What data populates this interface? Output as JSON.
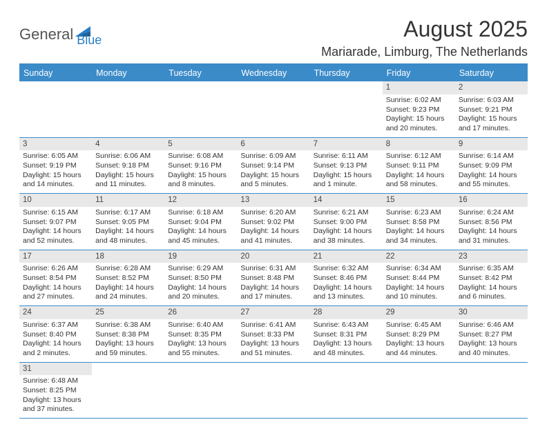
{
  "logo": {
    "part1": "General",
    "part2": "Blue"
  },
  "header": {
    "title": "August 2025",
    "location": "Mariarade, Limburg, The Netherlands"
  },
  "colors": {
    "header_bg": "#3b8bc9",
    "header_text": "#ffffff",
    "daynum_bg": "#e8e8e8",
    "rule": "#3b8bc9",
    "logo_blue": "#2a7ec6"
  },
  "weekdays": [
    "Sunday",
    "Monday",
    "Tuesday",
    "Wednesday",
    "Thursday",
    "Friday",
    "Saturday"
  ],
  "first_weekday_index": 5,
  "days": [
    {
      "n": 1,
      "sunrise": "6:02 AM",
      "sunset": "9:23 PM",
      "daylight": "15 hours and 20 minutes."
    },
    {
      "n": 2,
      "sunrise": "6:03 AM",
      "sunset": "9:21 PM",
      "daylight": "15 hours and 17 minutes."
    },
    {
      "n": 3,
      "sunrise": "6:05 AM",
      "sunset": "9:19 PM",
      "daylight": "15 hours and 14 minutes."
    },
    {
      "n": 4,
      "sunrise": "6:06 AM",
      "sunset": "9:18 PM",
      "daylight": "15 hours and 11 minutes."
    },
    {
      "n": 5,
      "sunrise": "6:08 AM",
      "sunset": "9:16 PM",
      "daylight": "15 hours and 8 minutes."
    },
    {
      "n": 6,
      "sunrise": "6:09 AM",
      "sunset": "9:14 PM",
      "daylight": "15 hours and 5 minutes."
    },
    {
      "n": 7,
      "sunrise": "6:11 AM",
      "sunset": "9:13 PM",
      "daylight": "15 hours and 1 minute."
    },
    {
      "n": 8,
      "sunrise": "6:12 AM",
      "sunset": "9:11 PM",
      "daylight": "14 hours and 58 minutes."
    },
    {
      "n": 9,
      "sunrise": "6:14 AM",
      "sunset": "9:09 PM",
      "daylight": "14 hours and 55 minutes."
    },
    {
      "n": 10,
      "sunrise": "6:15 AM",
      "sunset": "9:07 PM",
      "daylight": "14 hours and 52 minutes."
    },
    {
      "n": 11,
      "sunrise": "6:17 AM",
      "sunset": "9:05 PM",
      "daylight": "14 hours and 48 minutes."
    },
    {
      "n": 12,
      "sunrise": "6:18 AM",
      "sunset": "9:04 PM",
      "daylight": "14 hours and 45 minutes."
    },
    {
      "n": 13,
      "sunrise": "6:20 AM",
      "sunset": "9:02 PM",
      "daylight": "14 hours and 41 minutes."
    },
    {
      "n": 14,
      "sunrise": "6:21 AM",
      "sunset": "9:00 PM",
      "daylight": "14 hours and 38 minutes."
    },
    {
      "n": 15,
      "sunrise": "6:23 AM",
      "sunset": "8:58 PM",
      "daylight": "14 hours and 34 minutes."
    },
    {
      "n": 16,
      "sunrise": "6:24 AM",
      "sunset": "8:56 PM",
      "daylight": "14 hours and 31 minutes."
    },
    {
      "n": 17,
      "sunrise": "6:26 AM",
      "sunset": "8:54 PM",
      "daylight": "14 hours and 27 minutes."
    },
    {
      "n": 18,
      "sunrise": "6:28 AM",
      "sunset": "8:52 PM",
      "daylight": "14 hours and 24 minutes."
    },
    {
      "n": 19,
      "sunrise": "6:29 AM",
      "sunset": "8:50 PM",
      "daylight": "14 hours and 20 minutes."
    },
    {
      "n": 20,
      "sunrise": "6:31 AM",
      "sunset": "8:48 PM",
      "daylight": "14 hours and 17 minutes."
    },
    {
      "n": 21,
      "sunrise": "6:32 AM",
      "sunset": "8:46 PM",
      "daylight": "14 hours and 13 minutes."
    },
    {
      "n": 22,
      "sunrise": "6:34 AM",
      "sunset": "8:44 PM",
      "daylight": "14 hours and 10 minutes."
    },
    {
      "n": 23,
      "sunrise": "6:35 AM",
      "sunset": "8:42 PM",
      "daylight": "14 hours and 6 minutes."
    },
    {
      "n": 24,
      "sunrise": "6:37 AM",
      "sunset": "8:40 PM",
      "daylight": "14 hours and 2 minutes."
    },
    {
      "n": 25,
      "sunrise": "6:38 AM",
      "sunset": "8:38 PM",
      "daylight": "13 hours and 59 minutes."
    },
    {
      "n": 26,
      "sunrise": "6:40 AM",
      "sunset": "8:35 PM",
      "daylight": "13 hours and 55 minutes."
    },
    {
      "n": 27,
      "sunrise": "6:41 AM",
      "sunset": "8:33 PM",
      "daylight": "13 hours and 51 minutes."
    },
    {
      "n": 28,
      "sunrise": "6:43 AM",
      "sunset": "8:31 PM",
      "daylight": "13 hours and 48 minutes."
    },
    {
      "n": 29,
      "sunrise": "6:45 AM",
      "sunset": "8:29 PM",
      "daylight": "13 hours and 44 minutes."
    },
    {
      "n": 30,
      "sunrise": "6:46 AM",
      "sunset": "8:27 PM",
      "daylight": "13 hours and 40 minutes."
    },
    {
      "n": 31,
      "sunrise": "6:48 AM",
      "sunset": "8:25 PM",
      "daylight": "13 hours and 37 minutes."
    }
  ],
  "labels": {
    "sunrise": "Sunrise: ",
    "sunset": "Sunset: ",
    "daylight": "Daylight: "
  }
}
